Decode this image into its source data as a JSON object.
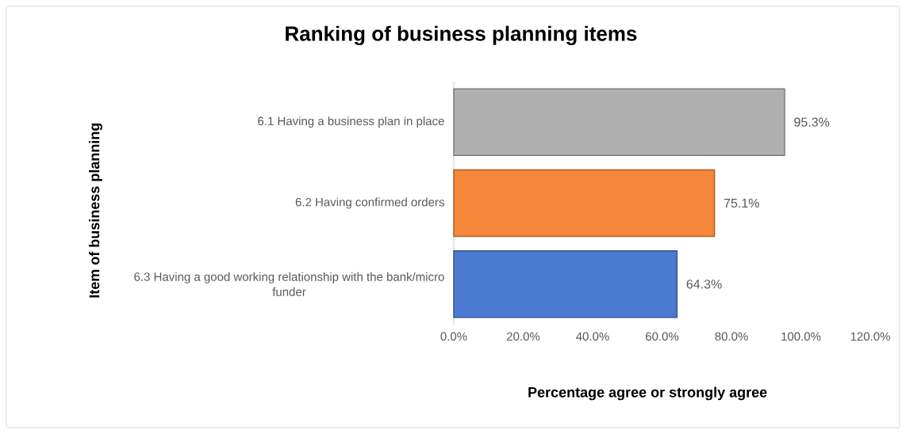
{
  "chart_data": {
    "type": "bar",
    "orientation": "horizontal",
    "title": "Ranking of business planning items",
    "xlabel": "Percentage agree or strongly agree",
    "ylabel": "Item of business planning",
    "categories": [
      "6.1 Having a business plan in place",
      "6.2 Having confirmed orders",
      "6.3 Having a good working relationship with the bank/micro funder"
    ],
    "values": [
      95.3,
      75.1,
      64.3
    ],
    "value_labels": [
      "95.3%",
      "75.1%",
      "64.3%"
    ],
    "colors": [
      "#b0b0b0",
      "#f5873a",
      "#4a7bd1"
    ],
    "xlim": [
      0,
      120
    ],
    "xticks": [
      {
        "value": 0,
        "label": "0.0%"
      },
      {
        "value": 20,
        "label": "20.0%"
      },
      {
        "value": 40,
        "label": "40.0%"
      },
      {
        "value": 60,
        "label": "60.0%"
      },
      {
        "value": 80,
        "label": "80.0%"
      },
      {
        "value": 100,
        "label": "100.0%"
      },
      {
        "value": 120,
        "label": "120.0%"
      }
    ],
    "grid": false,
    "legend": false
  }
}
